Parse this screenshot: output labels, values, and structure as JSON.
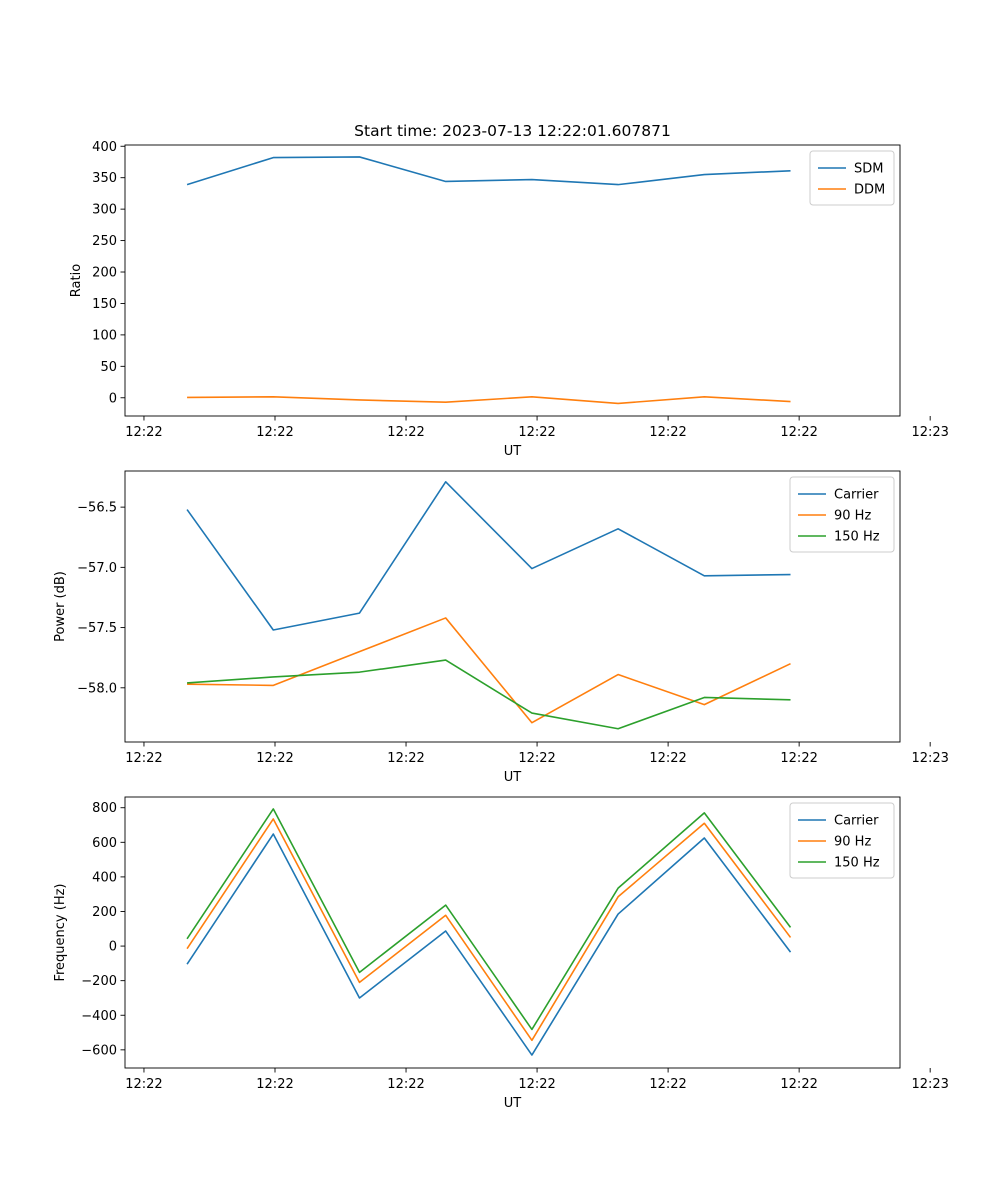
{
  "chart_data": [
    {
      "type": "line",
      "title": "Start time: 2023-07-13 12:22:01.607871",
      "xlabel": "UT",
      "ylabel": "Ratio",
      "x": [
        1,
        2,
        3,
        4,
        5,
        6,
        7,
        8
      ],
      "xlim": [
        0.28,
        9.27
      ],
      "x_ticks": [
        0.5,
        2.02,
        3.54,
        5.06,
        6.58,
        8.1,
        9.62
      ],
      "x_tick_labels": [
        "12:22",
        "12:22",
        "12:22",
        "12:22",
        "12:22",
        "12:22",
        "12:23"
      ],
      "ylim": [
        -29,
        402
      ],
      "y_ticks": [
        0,
        50,
        100,
        150,
        200,
        250,
        300,
        350,
        400
      ],
      "y_tick_labels": [
        "0",
        "50",
        "100",
        "150",
        "200",
        "250",
        "300",
        "350",
        "400"
      ],
      "legend_position": "top-right",
      "grid": false,
      "series": [
        {
          "name": "SDM",
          "color": "#1f77b4",
          "values": [
            339,
            382,
            383,
            344,
            347,
            339,
            355,
            361
          ]
        },
        {
          "name": "DDM",
          "color": "#ff7f0e",
          "values": [
            0.5,
            1.5,
            -3.5,
            -7,
            1.5,
            -9,
            1.5,
            -6
          ]
        }
      ]
    },
    {
      "type": "line",
      "title": "",
      "xlabel": "UT",
      "ylabel": "Power (dB)",
      "x": [
        1,
        2,
        3,
        4,
        5,
        6,
        7,
        8
      ],
      "xlim": [
        0.28,
        9.27
      ],
      "x_ticks": [
        0.5,
        2.02,
        3.54,
        5.06,
        6.58,
        8.1,
        9.62
      ],
      "x_tick_labels": [
        "12:22",
        "12:22",
        "12:22",
        "12:22",
        "12:22",
        "12:22",
        "12:23"
      ],
      "ylim": [
        -58.45,
        -56.2
      ],
      "y_ticks": [
        -58.0,
        -57.5,
        -57.0,
        -56.5
      ],
      "y_tick_labels": [
        "−58.0",
        "−57.5",
        "−57.0",
        "−56.5"
      ],
      "legend_position": "top-right",
      "grid": false,
      "series": [
        {
          "name": "Carrier",
          "color": "#1f77b4",
          "values": [
            -56.52,
            -57.52,
            -57.38,
            -56.29,
            -57.01,
            -56.68,
            -57.07,
            -57.06
          ]
        },
        {
          "name": "90 Hz",
          "color": "#ff7f0e",
          "values": [
            -57.97,
            -57.98,
            -57.7,
            -57.42,
            -58.29,
            -57.89,
            -58.14,
            -57.8
          ]
        },
        {
          "name": "150 Hz",
          "color": "#2ca02c",
          "values": [
            -57.96,
            -57.91,
            -57.87,
            -57.77,
            -58.21,
            -58.34,
            -58.08,
            -58.1
          ]
        }
      ]
    },
    {
      "type": "line",
      "title": "",
      "xlabel": "UT",
      "ylabel": "Frequency (Hz)",
      "x": [
        1,
        2,
        3,
        4,
        5,
        6,
        7,
        8
      ],
      "xlim": [
        0.28,
        9.27
      ],
      "x_ticks": [
        0.5,
        2.02,
        3.54,
        5.06,
        6.58,
        8.1,
        9.62
      ],
      "x_tick_labels": [
        "12:22",
        "12:22",
        "12:22",
        "12:22",
        "12:22",
        "12:22",
        "12:23"
      ],
      "ylim": [
        -705,
        862
      ],
      "y_ticks": [
        -600,
        -400,
        -200,
        0,
        200,
        400,
        600,
        800
      ],
      "y_tick_labels": [
        "−600",
        "−400",
        "−200",
        "0",
        "200",
        "400",
        "600",
        "800"
      ],
      "legend_position": "top-right",
      "grid": false,
      "series": [
        {
          "name": "Carrier",
          "color": "#1f77b4",
          "values": [
            -105,
            648,
            -300,
            87,
            -630,
            185,
            625,
            -35
          ]
        },
        {
          "name": "90 Hz",
          "color": "#ff7f0e",
          "values": [
            -15,
            735,
            -210,
            178,
            -545,
            285,
            710,
            50
          ]
        },
        {
          "name": "150 Hz",
          "color": "#2ca02c",
          "values": [
            42,
            793,
            -152,
            237,
            -482,
            335,
            770,
            108
          ]
        }
      ]
    }
  ]
}
